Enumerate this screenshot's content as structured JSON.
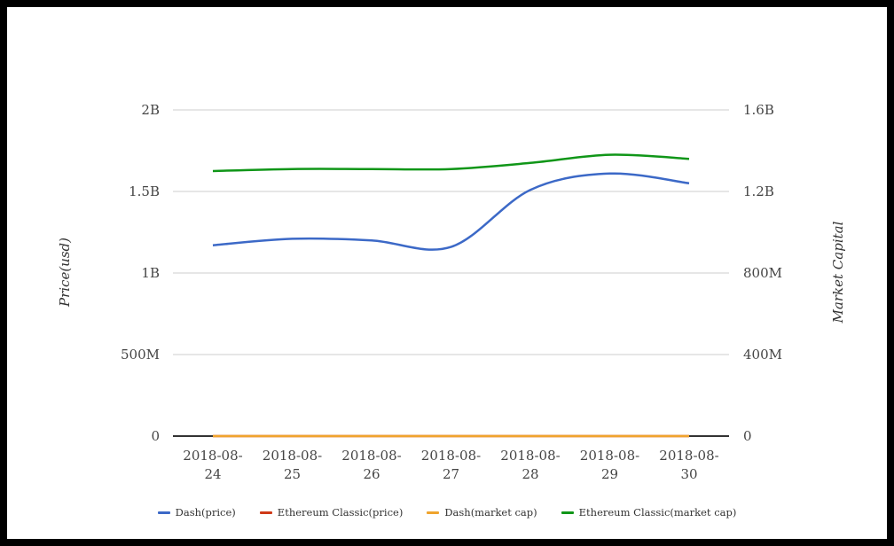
{
  "page": {
    "background": "#ffffff",
    "frame_color": "#000000"
  },
  "chart_data": {
    "type": "line",
    "smooth": true,
    "grid": true,
    "legend_position": "bottom",
    "x": [
      "2018-08-24",
      "2018-08-25",
      "2018-08-26",
      "2018-08-27",
      "2018-08-28",
      "2018-08-29",
      "2018-08-30"
    ],
    "left_axis": {
      "title": "Price(usd)",
      "ticks_top_to_bottom": [
        "2B",
        "1.5B",
        "1B",
        "500M",
        "0"
      ],
      "min": 0,
      "max": 2000000000
    },
    "right_axis": {
      "title": "Market Capital",
      "ticks_top_to_bottom": [
        "1.6B",
        "1.2B",
        "800M",
        "400M",
        "0"
      ],
      "min": 0,
      "max": 1600000000
    },
    "series": [
      {
        "name": "Dash(price)",
        "color": "#3c69c7",
        "axis": "left",
        "values": [
          1170000000,
          1210000000,
          1200000000,
          1160000000,
          1510000000,
          1610000000,
          1550000000
        ]
      },
      {
        "name": "Ethereum Classic(price)",
        "color": "#cf3917",
        "axis": "left",
        "values": [
          0,
          0,
          0,
          0,
          0,
          0,
          0
        ]
      },
      {
        "name": "Dash(market cap)",
        "color": "#efa42d",
        "axis": "left",
        "values": [
          0,
          0,
          0,
          0,
          0,
          0,
          0
        ]
      },
      {
        "name": "Ethereum Classic(market cap)",
        "color": "#109618",
        "axis": "right",
        "values": [
          1300000000,
          1310000000,
          1310000000,
          1310000000,
          1340000000,
          1380000000,
          1360000000
        ]
      }
    ],
    "colors": {
      "gridline": "#cccccc",
      "axis_line": "#333333",
      "tick_text": "#454545"
    }
  }
}
